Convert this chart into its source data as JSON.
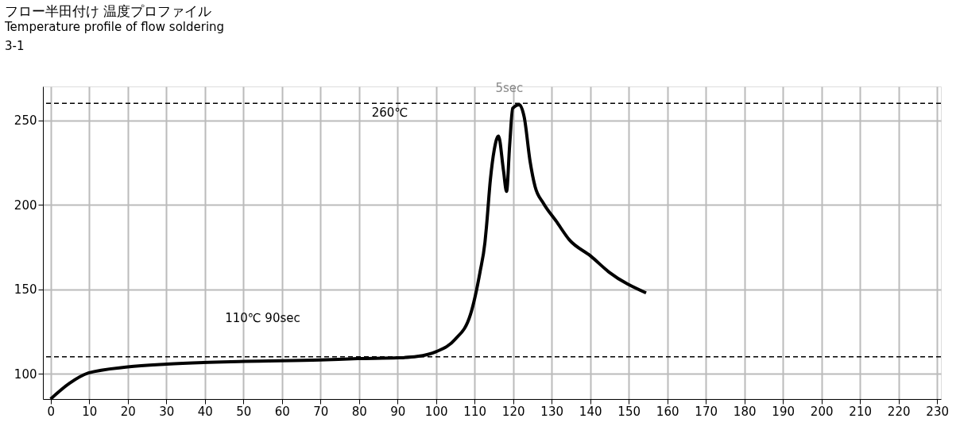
{
  "chart_data": {
    "type": "line",
    "title": "フロー半田付け 温度プロファイル",
    "subtitle": "Temperature profile of flow soldering",
    "x": [
      0,
      4.9,
      9.8,
      20,
      30.1,
      50.4,
      69.9,
      79.7,
      90.2,
      95.1,
      100,
      104.9,
      108.9,
      111.4,
      112.7,
      113.1,
      114.1,
      115.1,
      116.2,
      117.5,
      118.3,
      119.1,
      119.9,
      121.6,
      122.9,
      124.4,
      125.7,
      127.8,
      131.2,
      134.6,
      140.1,
      144.9,
      154.5
    ],
    "series": [
      {
        "color": "#000000",
        "values": [
          85,
          94.3,
          100.4,
          104,
          105.7,
          107.3,
          108.1,
          108.9,
          109.4,
          110.2,
          113,
          120.2,
          134.8,
          160,
          177.9,
          187.4,
          214.8,
          232.5,
          240.7,
          220.2,
          207.9,
          235.2,
          257.1,
          259.2,
          251.6,
          225.7,
          210.7,
          201.1,
          190.2,
          179.2,
          169.7,
          160.1,
          147.8
        ]
      }
    ],
    "xlim": [
      -2,
      231
    ],
    "ylim": [
      85,
      270
    ],
    "xticks": [
      0,
      10,
      20,
      30,
      40,
      50,
      60,
      70,
      80,
      90,
      100,
      110,
      120,
      130,
      140,
      150,
      160,
      170,
      180,
      190,
      200,
      210,
      220,
      230
    ],
    "yticks": [
      100,
      150,
      200,
      250
    ],
    "grid": true,
    "marker": "none",
    "line_style": "solid",
    "ref_lines": [
      {
        "axis": "y",
        "value": 260,
        "label": "260℃",
        "line_style": "dashed",
        "color": "#000000"
      },
      {
        "axis": "y",
        "value": 110,
        "line_style": "dashed",
        "color": "#000000"
      }
    ],
    "annotations": [
      "3-1",
      "110℃ 90sec",
      "5sec"
    ]
  }
}
